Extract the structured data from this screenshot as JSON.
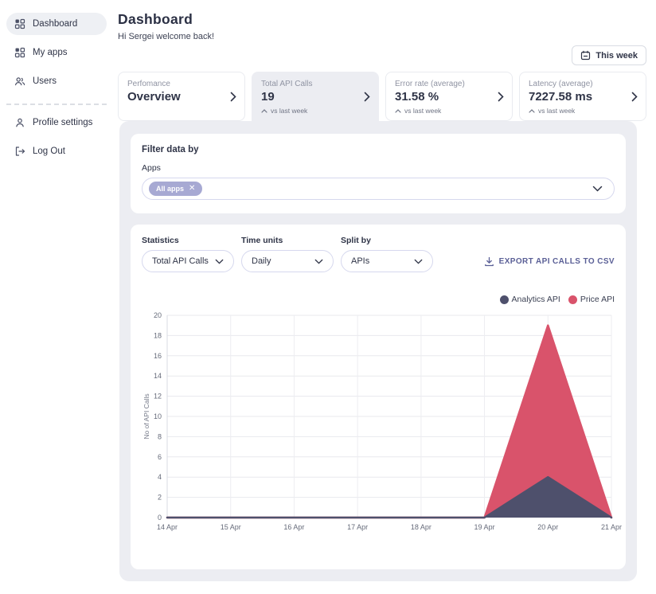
{
  "sidebar": {
    "items": [
      {
        "label": "Dashboard",
        "active": true
      },
      {
        "label": "My apps",
        "active": false
      },
      {
        "label": "Users",
        "active": false
      },
      {
        "label": "Profile settings",
        "active": false
      },
      {
        "label": "Log Out",
        "active": false
      }
    ]
  },
  "header": {
    "title": "Dashboard",
    "subtitle": "Hi Sergei welcome back!",
    "period_button": "This week"
  },
  "stat_cards": [
    {
      "label": "Perfomance",
      "value": "Overview",
      "sub": ""
    },
    {
      "label": "Total API Calls",
      "value": "19",
      "sub": "vs last week"
    },
    {
      "label": "Error rate (average)",
      "value": "31.58 %",
      "sub": "vs last week"
    },
    {
      "label": "Latency (average)",
      "value": "7227.58 ms",
      "sub": "vs last week"
    }
  ],
  "filter": {
    "title": "Filter data by",
    "apps_label": "Apps",
    "chip_label": "All apps"
  },
  "controls": [
    {
      "label": "Statistics",
      "value": "Total API Calls"
    },
    {
      "label": "Time units",
      "value": "Daily"
    },
    {
      "label": "Split by",
      "value": "APIs"
    }
  ],
  "export_label": "EXPORT API CALLS TO CSV",
  "chart_data": {
    "type": "area",
    "stacked": true,
    "categories": [
      "14 Apr",
      "15 Apr",
      "16 Apr",
      "17 Apr",
      "18 Apr",
      "19 Apr",
      "20 Apr",
      "21 Apr"
    ],
    "series": [
      {
        "name": "Analytics API",
        "color": "#4e506c",
        "values": [
          0,
          0,
          0,
          0,
          0,
          0,
          4,
          0
        ]
      },
      {
        "name": "Price API",
        "color": "#d9536b",
        "values": [
          0,
          0,
          0,
          0,
          0,
          0,
          15,
          0
        ]
      }
    ],
    "title": "",
    "xlabel": "",
    "ylabel": "No of API Calls",
    "ylim": [
      0,
      20
    ],
    "ytick_step": 2,
    "grid": true,
    "legend_position": "top-right"
  },
  "colors": {
    "accent_navy": "#4e506c",
    "accent_red": "#d9536b",
    "chip_purple": "#a7a9d3",
    "select_border": "#d6d8ee",
    "panel_grey": "#ecedf2",
    "export_purple": "#5a5f96",
    "text_dark": "#2f3447",
    "text_muted": "#8f93a2"
  }
}
